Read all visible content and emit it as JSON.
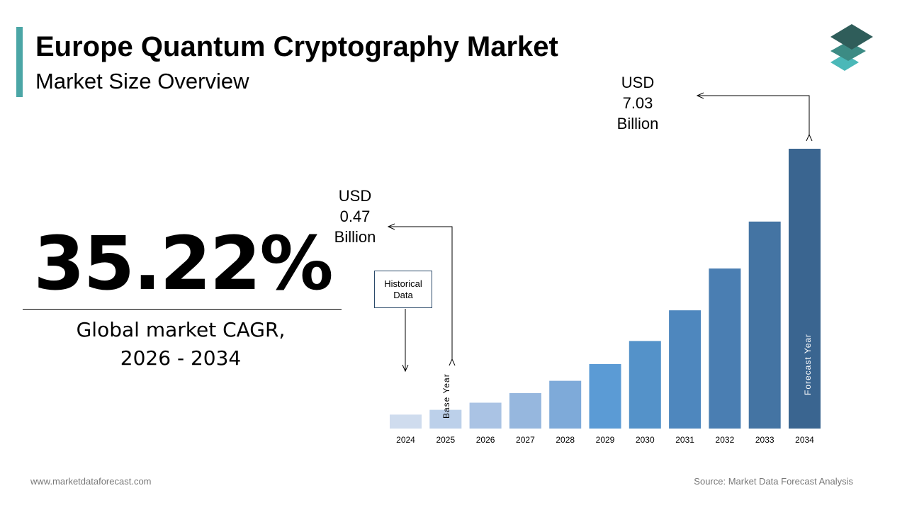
{
  "header": {
    "title": "Europe Quantum Cryptography Market",
    "subtitle": "Market Size Overview"
  },
  "logo": {
    "icon": "stacked-layers-icon",
    "colors": [
      "#2F5D5A",
      "#3C8B84",
      "#4BB8B8"
    ]
  },
  "cagr": {
    "value": "35.22%",
    "label_line1": "Global market CAGR,",
    "label_line2": "2026 - 2034"
  },
  "annotations": {
    "first_value": {
      "line1": "USD",
      "line2": "0.47",
      "line3": "Billion"
    },
    "last_value": {
      "line1": "USD",
      "line2": "7.03",
      "line3": "Billion"
    },
    "historical_line1": "Historical",
    "historical_line2": "Data",
    "base_year": "Base Year",
    "forecast_year": "Forecast Year"
  },
  "chart_data": {
    "type": "bar",
    "categories": [
      "2024",
      "2025",
      "2026",
      "2027",
      "2028",
      "2029",
      "2030",
      "2031",
      "2032",
      "2033",
      "2034"
    ],
    "values": [
      0.35,
      0.47,
      0.65,
      0.89,
      1.2,
      1.62,
      2.2,
      2.97,
      4.02,
      5.2,
      7.03
    ],
    "unit": "USD Billion",
    "colors": [
      "#CFDCEE",
      "#BCD0EA",
      "#AAC3E4",
      "#96B7DE",
      "#7EAAD9",
      "#5B9BD5",
      "#5492C9",
      "#4E87BE",
      "#4A7EB2",
      "#4474A3",
      "#3A6590"
    ]
  },
  "footer": {
    "website": "www.marketdataforecast.com",
    "source": "Source: Market Data Forecast Analysis"
  }
}
